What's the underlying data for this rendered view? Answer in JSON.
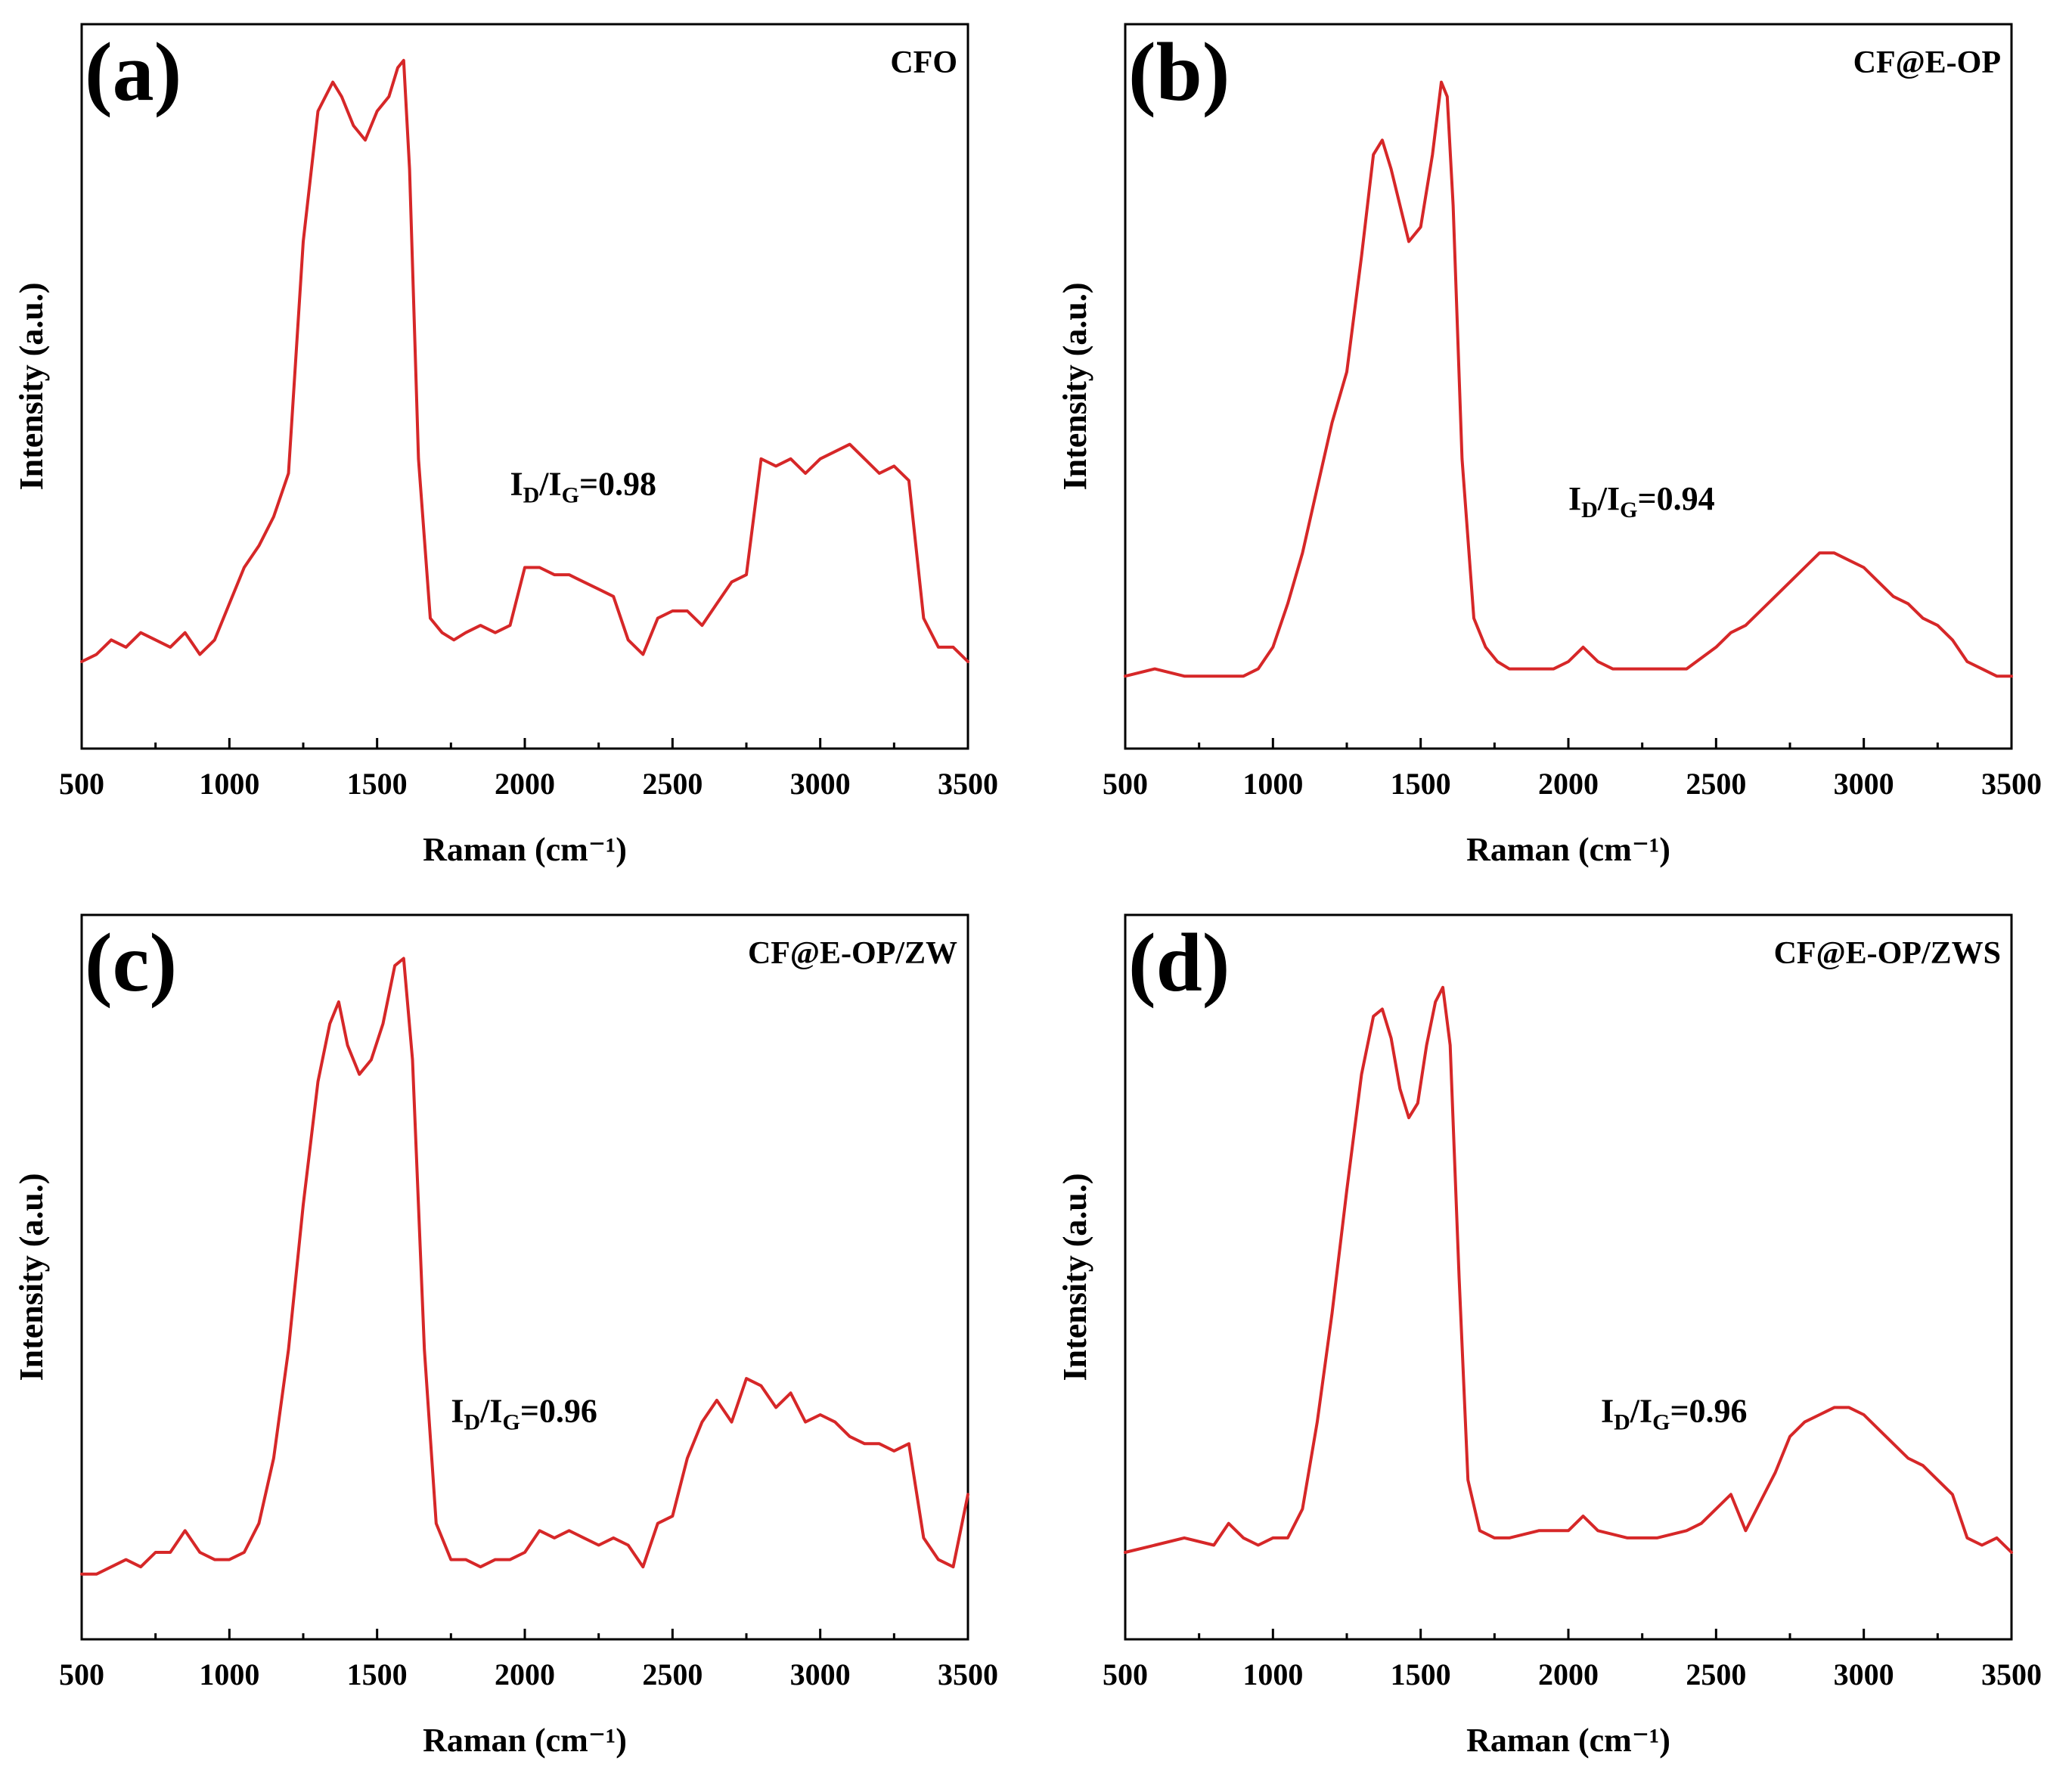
{
  "figure": {
    "xlabel": "Raman (cm⁻¹)",
    "ylabel": "Intensity (a.u.)",
    "series_color": "#d62728"
  },
  "chart_data": [
    {
      "type": "line",
      "panel": "(a)",
      "title": "CFO",
      "xlabel": "Raman (cm⁻¹)",
      "ylabel": "Intensity (a.u.)",
      "xlim": [
        500,
        3500
      ],
      "ylim": [
        0,
        100
      ],
      "xticks": [
        500,
        1000,
        1500,
        2000,
        2500,
        3000,
        3500
      ],
      "ratio": {
        "d": "D",
        "g": "G",
        "value": "0.98",
        "x": 1950,
        "y": 35
      },
      "x": [
        500,
        550,
        600,
        650,
        700,
        750,
        800,
        850,
        900,
        950,
        1000,
        1050,
        1100,
        1150,
        1200,
        1250,
        1300,
        1350,
        1380,
        1420,
        1460,
        1500,
        1540,
        1570,
        1590,
        1610,
        1640,
        1680,
        1720,
        1760,
        1800,
        1850,
        1900,
        1950,
        2000,
        2050,
        2100,
        2150,
        2200,
        2250,
        2300,
        2350,
        2400,
        2450,
        2500,
        2550,
        2600,
        2650,
        2700,
        2750,
        2800,
        2850,
        2900,
        2950,
        3000,
        3050,
        3100,
        3150,
        3200,
        3250,
        3300,
        3350,
        3400,
        3450,
        3500
      ],
      "y": [
        12,
        13,
        15,
        14,
        16,
        15,
        14,
        16,
        13,
        15,
        20,
        25,
        28,
        32,
        38,
        70,
        88,
        92,
        90,
        86,
        84,
        88,
        90,
        94,
        95,
        80,
        40,
        18,
        16,
        15,
        16,
        17,
        16,
        17,
        25,
        25,
        24,
        24,
        23,
        22,
        21,
        15,
        13,
        18,
        19,
        19,
        17,
        20,
        23,
        24,
        40,
        39,
        40,
        38,
        40,
        41,
        42,
        40,
        38,
        39,
        37,
        18,
        14,
        14,
        12
      ]
    },
    {
      "type": "line",
      "panel": "(b)",
      "title": "CF@E-OP",
      "xlabel": "Raman (cm⁻¹)",
      "ylabel": "Intensity (a.u.)",
      "xlim": [
        500,
        3500
      ],
      "ylim": [
        0,
        100
      ],
      "xticks": [
        500,
        1000,
        1500,
        2000,
        2500,
        3000,
        3500
      ],
      "ratio": {
        "d": "D",
        "g": "G",
        "value": "0.94",
        "x": 2000,
        "y": 33
      },
      "x": [
        500,
        600,
        700,
        800,
        900,
        950,
        1000,
        1050,
        1100,
        1150,
        1200,
        1250,
        1300,
        1340,
        1370,
        1400,
        1430,
        1460,
        1500,
        1540,
        1570,
        1590,
        1610,
        1640,
        1680,
        1720,
        1760,
        1800,
        1900,
        1950,
        2000,
        2050,
        2100,
        2150,
        2200,
        2300,
        2400,
        2500,
        2550,
        2600,
        2650,
        2700,
        2750,
        2800,
        2850,
        2900,
        2950,
        3000,
        3050,
        3100,
        3150,
        3200,
        3250,
        3300,
        3350,
        3400,
        3450,
        3500
      ],
      "y": [
        10,
        11,
        10,
        10,
        10,
        11,
        14,
        20,
        27,
        36,
        45,
        52,
        68,
        82,
        84,
        80,
        75,
        70,
        72,
        82,
        92,
        90,
        75,
        40,
        18,
        14,
        12,
        11,
        11,
        11,
        12,
        14,
        12,
        11,
        11,
        11,
        11,
        14,
        16,
        17,
        19,
        21,
        23,
        25,
        27,
        27,
        26,
        25,
        23,
        21,
        20,
        18,
        17,
        15,
        12,
        11,
        10,
        10
      ]
    },
    {
      "type": "line",
      "panel": "(c)",
      "title": "CF@E-OP/ZW",
      "xlabel": "Raman (cm⁻¹)",
      "ylabel": "Intensity (a.u.)",
      "xlim": [
        500,
        3500
      ],
      "ylim": [
        0,
        100
      ],
      "xticks": [
        500,
        1000,
        1500,
        2000,
        2500,
        3000,
        3500
      ],
      "ratio": {
        "d": "D",
        "g": "G",
        "value": "0.96",
        "x": 1750,
        "y": 30
      },
      "x": [
        500,
        550,
        600,
        650,
        700,
        750,
        800,
        850,
        900,
        950,
        1000,
        1050,
        1100,
        1150,
        1200,
        1250,
        1300,
        1340,
        1370,
        1400,
        1440,
        1480,
        1520,
        1560,
        1590,
        1620,
        1660,
        1700,
        1750,
        1800,
        1850,
        1900,
        1950,
        2000,
        2050,
        2100,
        2150,
        2200,
        2250,
        2300,
        2350,
        2400,
        2450,
        2500,
        2550,
        2600,
        2650,
        2700,
        2750,
        2800,
        2850,
        2900,
        2950,
        3000,
        3050,
        3100,
        3150,
        3200,
        3250,
        3300,
        3350,
        3400,
        3450,
        3500
      ],
      "y": [
        9,
        9,
        10,
        11,
        10,
        12,
        12,
        15,
        12,
        11,
        11,
        12,
        16,
        25,
        40,
        60,
        77,
        85,
        88,
        82,
        78,
        80,
        85,
        93,
        94,
        80,
        40,
        16,
        11,
        11,
        10,
        11,
        11,
        12,
        15,
        14,
        15,
        14,
        13,
        14,
        13,
        10,
        16,
        17,
        25,
        30,
        33,
        30,
        36,
        35,
        32,
        34,
        30,
        31,
        30,
        28,
        27,
        27,
        26,
        27,
        14,
        11,
        10,
        20
      ]
    },
    {
      "type": "line",
      "panel": "(d)",
      "title": "CF@E-OP/ZWS",
      "xlabel": "Raman (cm⁻¹)",
      "ylabel": "Intensity (a.u.)",
      "xlim": [
        500,
        3500
      ],
      "ylim": [
        0,
        100
      ],
      "xticks": [
        500,
        1000,
        1500,
        2000,
        2500,
        3000,
        3500
      ],
      "ratio": {
        "d": "D",
        "g": "G",
        "value": "0.96",
        "x": 2110,
        "y": 30
      },
      "x": [
        500,
        600,
        700,
        800,
        850,
        900,
        950,
        1000,
        1050,
        1100,
        1150,
        1200,
        1250,
        1300,
        1340,
        1370,
        1400,
        1430,
        1460,
        1490,
        1520,
        1550,
        1575,
        1600,
        1630,
        1660,
        1700,
        1750,
        1800,
        1900,
        2000,
        2050,
        2100,
        2200,
        2300,
        2400,
        2450,
        2500,
        2550,
        2600,
        2650,
        2700,
        2750,
        2800,
        2850,
        2900,
        2950,
        3000,
        3050,
        3100,
        3150,
        3200,
        3250,
        3300,
        3350,
        3400,
        3450,
        3500
      ],
      "y": [
        12,
        13,
        14,
        13,
        16,
        14,
        13,
        14,
        14,
        18,
        30,
        45,
        62,
        78,
        86,
        87,
        83,
        76,
        72,
        74,
        82,
        88,
        90,
        82,
        50,
        22,
        15,
        14,
        14,
        15,
        15,
        17,
        15,
        14,
        14,
        15,
        16,
        18,
        20,
        15,
        19,
        23,
        28,
        30,
        31,
        32,
        32,
        31,
        29,
        27,
        25,
        24,
        22,
        20,
        14,
        13,
        14,
        12
      ]
    }
  ]
}
